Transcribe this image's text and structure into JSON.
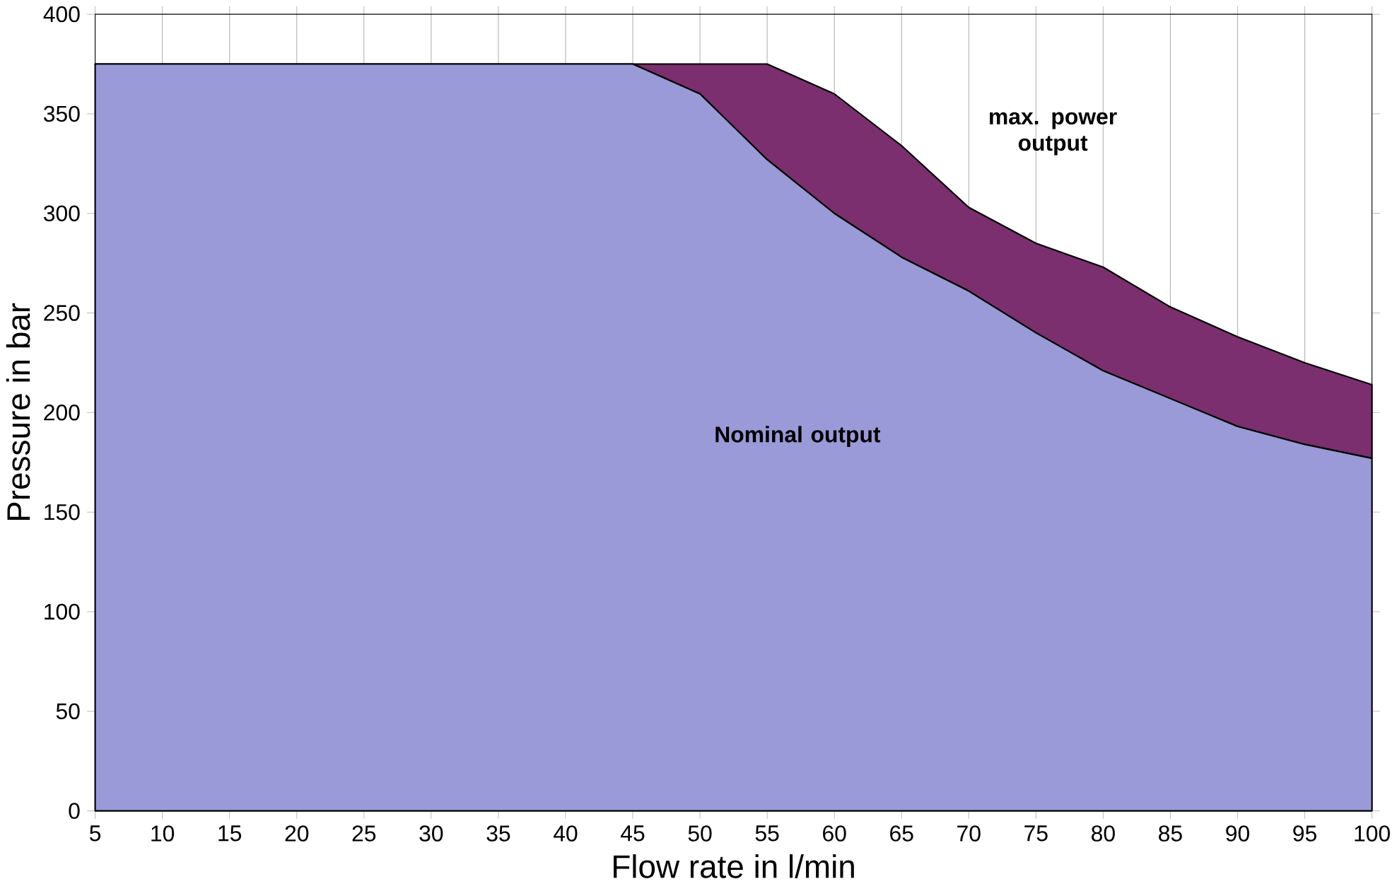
{
  "chart_data": {
    "type": "area",
    "stacked": true,
    "xlabel": "Flow rate in l/min",
    "ylabel": "Pressure in bar",
    "x": [
      5,
      10,
      15,
      20,
      25,
      30,
      35,
      40,
      45,
      50,
      55,
      60,
      65,
      70,
      75,
      80,
      85,
      90,
      95,
      100
    ],
    "series": [
      {
        "color": "#9a9ad8",
        "values": [
          375,
          375,
          375,
          375,
          375,
          375,
          375,
          375,
          375,
          360,
          327,
          300,
          278,
          261,
          240,
          221,
          207,
          193,
          184,
          177
        ]
      },
      {
        "color": "#7b2f6e",
        "values": [
          0,
          0,
          0,
          0,
          0,
          0,
          0,
          0,
          0,
          15,
          48,
          60,
          56,
          42,
          45,
          52,
          46,
          45,
          41,
          37
        ]
      }
    ],
    "xlim": [
      5,
      100
    ],
    "ylim": [
      0,
      400
    ],
    "xticks": [
      5,
      10,
      15,
      20,
      25,
      30,
      35,
      40,
      45,
      50,
      55,
      60,
      65,
      70,
      75,
      80,
      85,
      90,
      95,
      100
    ],
    "yticks": [
      0,
      50,
      100,
      150,
      200,
      250,
      300,
      350,
      400
    ],
    "grid": "x",
    "annotations": [
      "max. power output",
      "Nominal output"
    ]
  }
}
